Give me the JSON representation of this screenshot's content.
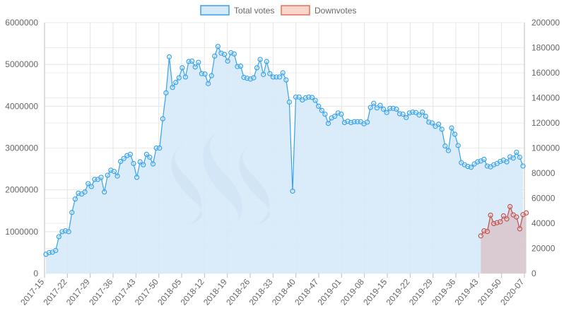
{
  "chart_data": {
    "type": "line",
    "legend_position": "top-center",
    "grid": true,
    "x_labels": [
      "2017-15",
      "2017-22",
      "2017-29",
      "2017-36",
      "2017-43",
      "2017-50",
      "2018-05",
      "2018-12",
      "2018-19",
      "2018-26",
      "2018-33",
      "2018-40",
      "2018-47",
      "2019-01",
      "2019-08",
      "2019-15",
      "2019-22",
      "2019-29",
      "2019-36",
      "2019-43",
      "2019-50",
      "2020-07"
    ],
    "y_left": {
      "min": 0,
      "max": 6000000,
      "ticks": [
        "0",
        "1000000",
        "2000000",
        "3000000",
        "4000000",
        "5000000",
        "6000000"
      ]
    },
    "y_right": {
      "min": 0,
      "max": 200000,
      "ticks": [
        "0",
        "20000",
        "40000",
        "60000",
        "80000",
        "100000",
        "120000",
        "140000",
        "160000",
        "180000",
        "200000"
      ]
    },
    "series": [
      {
        "name": "Total votes",
        "axis": "left",
        "color": "#36a2eb",
        "fill": "#d6e9f8",
        "values": [
          460000,
          500000,
          510000,
          550000,
          880000,
          1000000,
          1020000,
          1000000,
          1460000,
          1780000,
          1920000,
          1900000,
          1950000,
          2150000,
          2080000,
          2250000,
          2250000,
          2300000,
          1950000,
          2350000,
          2470000,
          2440000,
          2330000,
          2680000,
          2750000,
          2820000,
          2850000,
          2630000,
          2300000,
          2670000,
          2600000,
          2850000,
          2780000,
          2620000,
          3000000,
          3000000,
          3700000,
          4320000,
          5180000,
          4450000,
          4570000,
          4680000,
          4920000,
          4700000,
          5070000,
          5080000,
          4940000,
          5050000,
          4780000,
          4770000,
          4540000,
          4730000,
          5200000,
          5430000,
          5270000,
          5240000,
          5080000,
          5280000,
          5250000,
          4950000,
          4960000,
          4690000,
          4670000,
          4650000,
          4680000,
          4920000,
          5120000,
          4760000,
          5070000,
          4780000,
          4700000,
          4700000,
          4700000,
          4800000,
          4630000,
          4100000,
          1970000,
          4220000,
          4220000,
          4150000,
          4200000,
          4220000,
          4210000,
          4140000,
          4000000,
          3900000,
          3810000,
          3590000,
          3720000,
          3760000,
          3840000,
          3810000,
          3610000,
          3640000,
          3610000,
          3630000,
          3630000,
          3630000,
          3580000,
          3620000,
          3970000,
          4070000,
          3960000,
          4020000,
          3930000,
          3850000,
          3950000,
          3950000,
          3930000,
          3820000,
          3810000,
          3730000,
          3840000,
          3860000,
          3850000,
          3790000,
          3860000,
          3760000,
          3620000,
          3600000,
          3520000,
          3570000,
          3450000,
          3050000,
          2940000,
          3480000,
          3330000,
          3060000,
          2650000,
          2600000,
          2560000,
          2540000,
          2620000,
          2670000,
          2690000,
          2730000,
          2570000,
          2550000,
          2600000,
          2630000,
          2680000,
          2710000,
          2670000,
          2790000,
          2760000,
          2900000,
          2780000,
          2570000
        ]
      },
      {
        "name": "Downvotes",
        "axis": "right",
        "color": "#c0504d",
        "fill": "#d8c8cc",
        "start_index": 134,
        "values": [
          30000,
          34000,
          33500,
          46500,
          39800,
          40500,
          41200,
          45900,
          43500,
          53300,
          46700,
          45000,
          35600,
          46900,
          48300
        ]
      }
    ]
  }
}
